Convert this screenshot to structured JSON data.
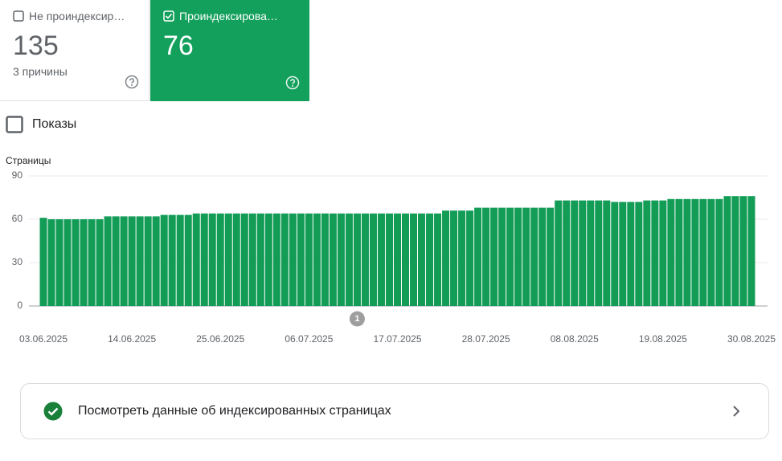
{
  "cards": [
    {
      "label": "Не проиндексир…",
      "value": "135",
      "note": "3 причины"
    },
    {
      "label": "Проиндексирова…",
      "value": "76"
    }
  ],
  "toggle": {
    "label": "Показы"
  },
  "chart_data": {
    "type": "bar",
    "y_label": "Страницы",
    "color": "#129c56",
    "ylim": [
      0,
      90
    ],
    "yticks": [
      0,
      30,
      60,
      90
    ],
    "grid": true,
    "categories": [
      "03.06.2025",
      null,
      null,
      null,
      null,
      null,
      null,
      null,
      null,
      null,
      null,
      "14.06.2025",
      null,
      null,
      null,
      null,
      null,
      null,
      null,
      null,
      null,
      null,
      "25.06.2025",
      null,
      null,
      null,
      null,
      null,
      null,
      null,
      null,
      null,
      null,
      "06.07.2025",
      null,
      null,
      null,
      null,
      null,
      null,
      null,
      null,
      null,
      null,
      "17.07.2025",
      null,
      null,
      null,
      null,
      null,
      null,
      null,
      null,
      null,
      null,
      "28.07.2025",
      null,
      null,
      null,
      null,
      null,
      null,
      null,
      null,
      null,
      null,
      "08.08.2025",
      null,
      null,
      null,
      null,
      null,
      null,
      null,
      null,
      null,
      null,
      "19.08.2025",
      null,
      null,
      null,
      null,
      null,
      null,
      null,
      null,
      null,
      null,
      "30.08.2025"
    ],
    "values": [
      61,
      60,
      60,
      60,
      60,
      60,
      60,
      60,
      62,
      62,
      62,
      62,
      62,
      62,
      62,
      63,
      63,
      63,
      63,
      64,
      64,
      64,
      64,
      64,
      64,
      64,
      64,
      64,
      64,
      64,
      64,
      64,
      64,
      64,
      64,
      64,
      64,
      64,
      64,
      64,
      64,
      64,
      64,
      64,
      64,
      64,
      64,
      64,
      64,
      64,
      66,
      66,
      66,
      66,
      68,
      68,
      68,
      68,
      68,
      68,
      68,
      68,
      68,
      68,
      73,
      73,
      73,
      73,
      73,
      73,
      73,
      72,
      72,
      72,
      72,
      73,
      73,
      73,
      74,
      74,
      74,
      74,
      74,
      74,
      74,
      76,
      76,
      76,
      76
    ],
    "annotations": [
      {
        "text": "1",
        "index": 39
      }
    ]
  },
  "link": {
    "label": "Посмотреть данные об индексированных страницах"
  }
}
